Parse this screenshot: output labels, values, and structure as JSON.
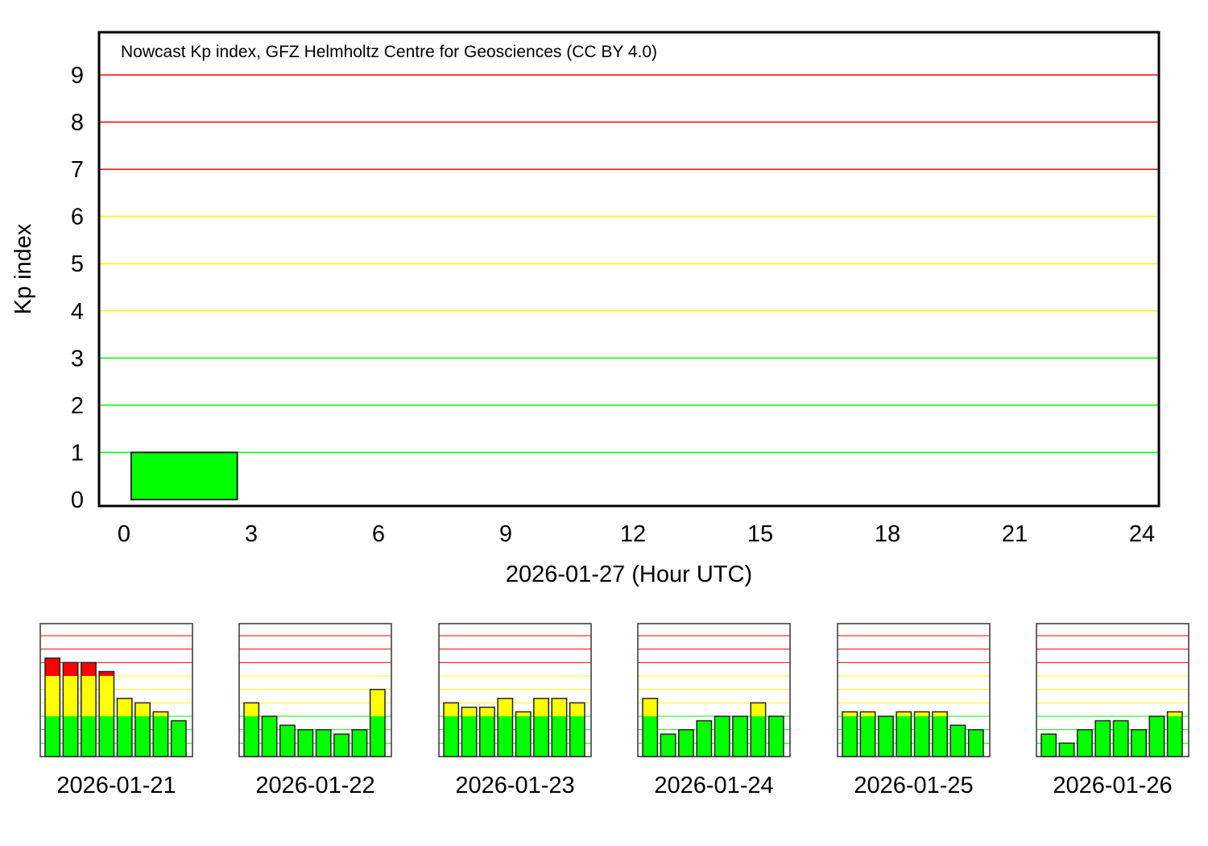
{
  "chart_data": [
    {
      "type": "bar",
      "title": "Nowcast Kp index, GFZ Helmholtz Centre for Geosciences (CC BY 4.0)",
      "xlabel": "2026-01-27 (Hour UTC)",
      "ylabel": "Kp index",
      "xlim": [
        0,
        24
      ],
      "ylim": [
        0,
        9
      ],
      "x_ticks": [
        "0",
        "3",
        "6",
        "9",
        "12",
        "15",
        "18",
        "21",
        "24"
      ],
      "y_ticks": [
        "0",
        "1",
        "2",
        "3",
        "4",
        "5",
        "6",
        "7",
        "8",
        "9"
      ],
      "grid": true,
      "grid_colors": {
        "1": "#00ff00",
        "2": "#00ff00",
        "3": "#00ff00",
        "4": "#ffff00",
        "5": "#ffff00",
        "6": "#ffff00",
        "7": "#ff0000",
        "8": "#ff0000",
        "9": "#ff0000"
      },
      "bars": [
        {
          "hour_start": 0,
          "hour_end": 3,
          "value": 1.0
        }
      ]
    },
    {
      "type": "bar",
      "label": "2026-01-21",
      "values": [
        7.33,
        7.0,
        7.0,
        6.33,
        4.33,
        4.0,
        3.33,
        2.67
      ]
    },
    {
      "type": "bar",
      "label": "2026-01-22",
      "values": [
        4.0,
        3.0,
        2.33,
        2.0,
        2.0,
        1.67,
        2.0,
        5.0
      ]
    },
    {
      "type": "bar",
      "label": "2026-01-23",
      "values": [
        4.0,
        3.67,
        3.67,
        4.33,
        3.33,
        4.33,
        4.33,
        4.0
      ]
    },
    {
      "type": "bar",
      "label": "2026-01-24",
      "values": [
        4.33,
        1.67,
        2.0,
        2.67,
        3.0,
        3.0,
        4.0,
        3.0
      ]
    },
    {
      "type": "bar",
      "label": "2026-01-25",
      "values": [
        3.33,
        3.33,
        3.0,
        3.33,
        3.33,
        3.33,
        2.33,
        2.0
      ]
    },
    {
      "type": "bar",
      "label": "2026-01-26",
      "values": [
        1.67,
        1.0,
        2.0,
        2.67,
        2.67,
        2.0,
        3.0,
        3.33
      ]
    }
  ],
  "colors": {
    "quiet": "#00ff00",
    "active": "#ffff00",
    "storm": "#ff0000"
  }
}
